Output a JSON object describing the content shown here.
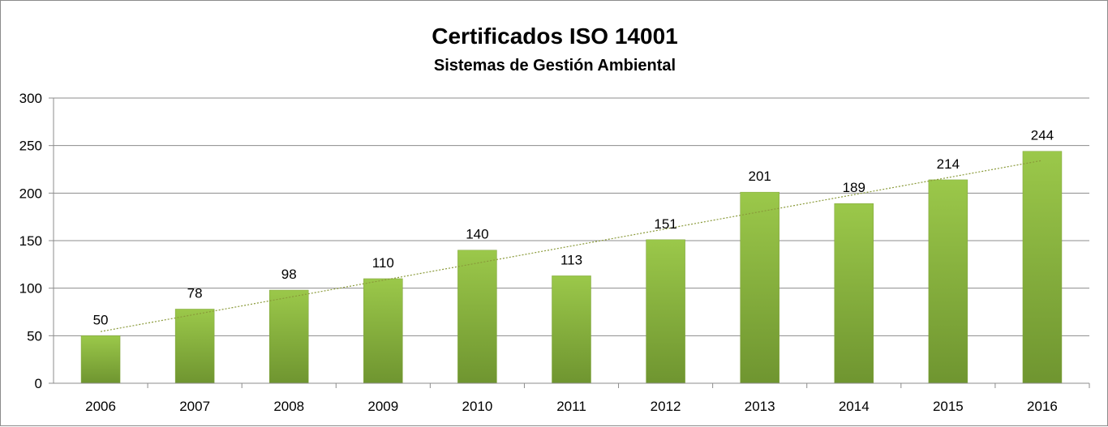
{
  "chart_data": {
    "type": "bar",
    "title": "Certificados  ISO 14001",
    "subtitle": "Sistemas de Gestión Ambiental",
    "xlabel": "",
    "ylabel": "",
    "categories": [
      "2006",
      "2007",
      "2008",
      "2009",
      "2010",
      "2011",
      "2012",
      "2013",
      "2014",
      "2015",
      "2016"
    ],
    "values": [
      50,
      78,
      98,
      110,
      140,
      113,
      151,
      201,
      189,
      214,
      244
    ],
    "ylim": [
      0,
      300
    ],
    "yticks": [
      "0",
      "50",
      "100",
      "150",
      "200",
      "250",
      "300"
    ],
    "grid": true,
    "legend": "none",
    "trendline": "linear",
    "colors": {
      "bar_light": "#9bc84a",
      "bar_dark": "#6f9530",
      "trendline": "#8a9a3a",
      "grid": "#8c8c8c"
    }
  }
}
